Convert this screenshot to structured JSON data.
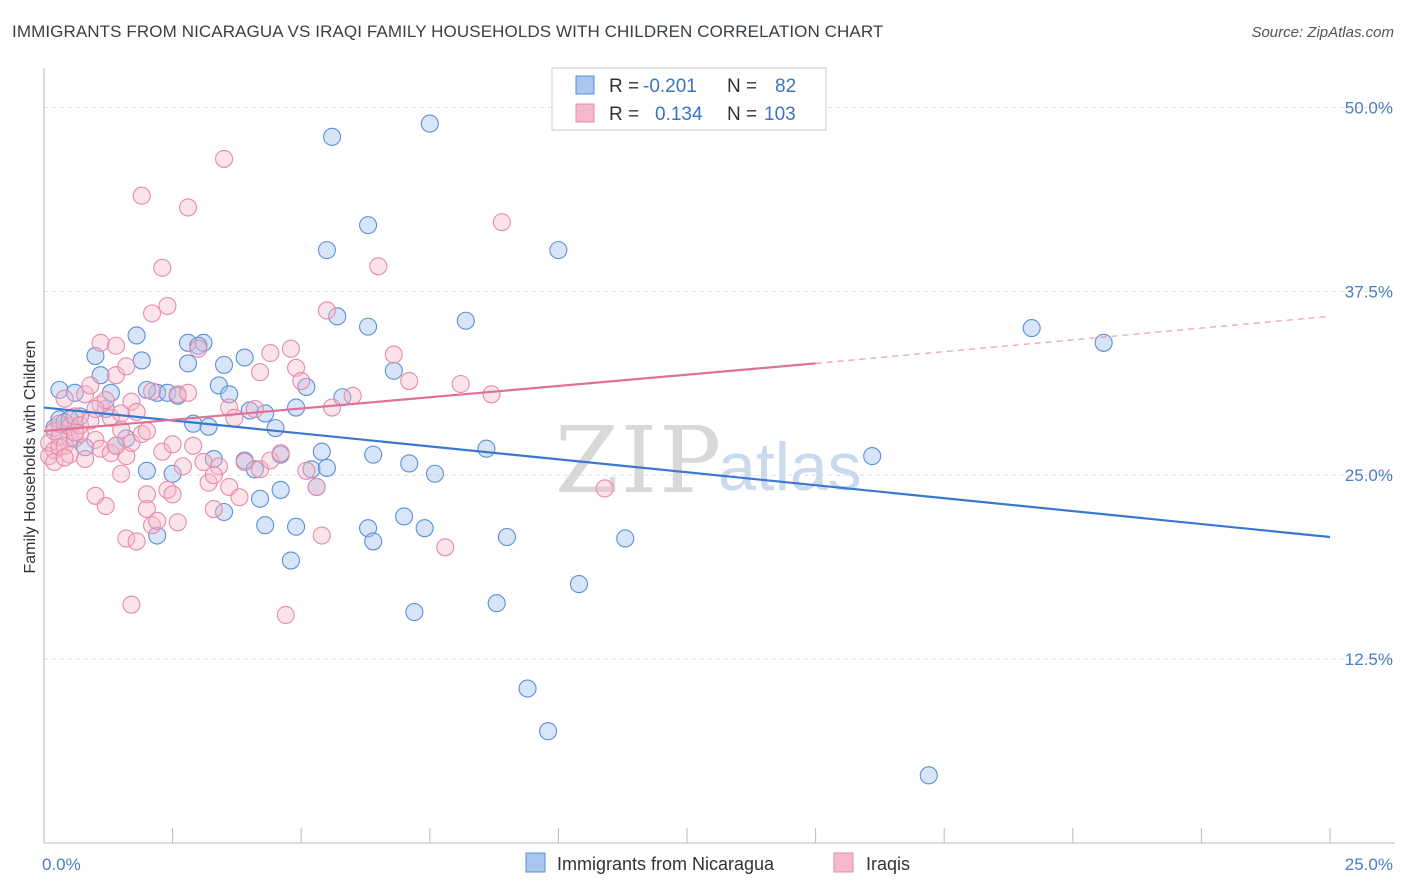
{
  "title": "IMMIGRANTS FROM NICARAGUA VS IRAQI FAMILY HOUSEHOLDS WITH CHILDREN CORRELATION CHART",
  "source": "Source: ZipAtlas.com",
  "watermark": {
    "zip": "ZIP",
    "atlas": "atlas"
  },
  "colors": {
    "blue_fill": "#a9c6ef",
    "blue_stroke": "#5b8fd6",
    "blue_line": "#3a78d0",
    "pink_fill": "#f6b8cb",
    "pink_stroke": "#e88aa8",
    "pink_line": "#e0709a",
    "grid": "#dddddd",
    "tick_text": "#4a7cc0"
  },
  "legend": {
    "rows": [
      {
        "r_label": "R =",
        "r_value": "-0.201",
        "n_label": "N =",
        "n_value": "82"
      },
      {
        "r_label": "R =",
        "r_value": "0.134",
        "n_label": "N =",
        "n_value": "103"
      }
    ]
  },
  "chart_data": {
    "type": "scatter",
    "title": "IMMIGRANTS FROM NICARAGUA VS IRAQI FAMILY HOUSEHOLDS WITH CHILDREN CORRELATION CHART",
    "xlabel": "",
    "ylabel": "Family Households with Children",
    "xlim": [
      0,
      25
    ],
    "ylim": [
      0,
      52
    ],
    "x_tick_labels": [
      "0.0%",
      "25.0%"
    ],
    "y_ticks": [
      12.5,
      25.0,
      37.5,
      50.0
    ],
    "y_tick_labels": [
      "12.5%",
      "25.0%",
      "37.5%",
      "50.0%"
    ],
    "grid": true,
    "legend_position": "top-center",
    "series": [
      {
        "name": "Immigrants from Nicaragua",
        "r": -0.201,
        "n": 82,
        "trend": {
          "x": [
            0,
            25
          ],
          "y": [
            29.6,
            20.8
          ]
        },
        "points": [
          [
            0.2,
            28.2
          ],
          [
            0.3,
            30.8
          ],
          [
            0.3,
            28.8
          ],
          [
            0.4,
            28.6
          ],
          [
            0.5,
            27.5
          ],
          [
            0.6,
            30.6
          ],
          [
            0.7,
            29.0
          ],
          [
            0.8,
            26.9
          ],
          [
            1.0,
            33.1
          ],
          [
            1.1,
            31.8
          ],
          [
            1.3,
            30.6
          ],
          [
            1.4,
            27.0
          ],
          [
            1.6,
            27.5
          ],
          [
            1.8,
            34.5
          ],
          [
            1.9,
            32.8
          ],
          [
            2.0,
            25.3
          ],
          [
            2.2,
            20.9
          ],
          [
            2.2,
            30.6
          ],
          [
            2.4,
            30.6
          ],
          [
            2.5,
            25.1
          ],
          [
            2.6,
            30.4
          ],
          [
            2.8,
            32.6
          ],
          [
            2.9,
            28.5
          ],
          [
            2.8,
            34.0
          ],
          [
            3.1,
            34.0
          ],
          [
            3.2,
            28.3
          ],
          [
            3.3,
            26.1
          ],
          [
            3.4,
            31.1
          ],
          [
            3.5,
            32.5
          ],
          [
            3.6,
            30.5
          ],
          [
            3.5,
            22.5
          ],
          [
            3.9,
            33.0
          ],
          [
            3.9,
            26.0
          ],
          [
            4.0,
            29.4
          ],
          [
            4.1,
            25.4
          ],
          [
            4.2,
            23.4
          ],
          [
            4.3,
            21.6
          ],
          [
            4.5,
            28.2
          ],
          [
            4.6,
            26.4
          ],
          [
            4.6,
            24.0
          ],
          [
            4.8,
            19.2
          ],
          [
            4.9,
            21.5
          ],
          [
            4.9,
            29.6
          ],
          [
            5.1,
            31.0
          ],
          [
            5.2,
            25.4
          ],
          [
            5.3,
            24.2
          ],
          [
            5.4,
            26.6
          ],
          [
            5.5,
            25.5
          ],
          [
            5.5,
            40.3
          ],
          [
            5.6,
            48.0
          ],
          [
            5.7,
            35.8
          ],
          [
            5.8,
            30.3
          ],
          [
            6.3,
            42.0
          ],
          [
            6.3,
            35.1
          ],
          [
            6.3,
            21.4
          ],
          [
            6.4,
            26.4
          ],
          [
            6.4,
            20.5
          ],
          [
            6.8,
            32.1
          ],
          [
            7.0,
            22.2
          ],
          [
            7.1,
            25.8
          ],
          [
            7.2,
            15.7
          ],
          [
            7.4,
            21.4
          ],
          [
            7.5,
            48.9
          ],
          [
            7.6,
            25.1
          ],
          [
            8.2,
            35.5
          ],
          [
            8.6,
            26.8
          ],
          [
            8.8,
            16.3
          ],
          [
            9.0,
            20.8
          ],
          [
            9.4,
            10.5
          ],
          [
            9.8,
            7.6
          ],
          [
            10.0,
            40.3
          ],
          [
            10.4,
            17.6
          ],
          [
            11.3,
            20.7
          ],
          [
            16.1,
            26.3
          ],
          [
            17.2,
            4.6
          ],
          [
            19.2,
            35.0
          ],
          [
            20.6,
            34.0
          ],
          [
            0.5,
            28.8
          ],
          [
            1.2,
            29.5
          ],
          [
            2.0,
            30.8
          ],
          [
            3.0,
            33.8
          ],
          [
            4.3,
            29.2
          ]
        ]
      },
      {
        "name": "Iraqis",
        "r": 0.134,
        "n": 103,
        "trend": {
          "x": [
            0,
            15
          ],
          "y": [
            28.0,
            32.6
          ]
        },
        "trend_dashed": {
          "x": [
            15,
            25
          ],
          "y": [
            32.6,
            35.8
          ]
        },
        "points": [
          [
            0.1,
            26.3
          ],
          [
            0.1,
            27.2
          ],
          [
            0.2,
            26.7
          ],
          [
            0.2,
            28.0
          ],
          [
            0.3,
            27.6
          ],
          [
            0.3,
            26.9
          ],
          [
            0.3,
            28.5
          ],
          [
            0.4,
            27.0
          ],
          [
            0.4,
            30.2
          ],
          [
            0.5,
            28.3
          ],
          [
            0.5,
            26.4
          ],
          [
            0.6,
            27.5
          ],
          [
            0.6,
            29.0
          ],
          [
            0.7,
            27.8
          ],
          [
            0.7,
            28.4
          ],
          [
            0.8,
            30.5
          ],
          [
            0.8,
            26.1
          ],
          [
            0.9,
            31.1
          ],
          [
            0.9,
            28.7
          ],
          [
            1.0,
            27.4
          ],
          [
            1.0,
            23.6
          ],
          [
            1.1,
            29.8
          ],
          [
            1.1,
            26.8
          ],
          [
            1.1,
            34.0
          ],
          [
            1.2,
            22.9
          ],
          [
            1.2,
            30.1
          ],
          [
            1.3,
            28.9
          ],
          [
            1.3,
            26.5
          ],
          [
            1.4,
            31.8
          ],
          [
            1.4,
            33.8
          ],
          [
            1.5,
            28.1
          ],
          [
            1.5,
            29.2
          ],
          [
            1.5,
            25.1
          ],
          [
            1.6,
            32.4
          ],
          [
            1.6,
            26.3
          ],
          [
            1.6,
            20.7
          ],
          [
            1.7,
            30.0
          ],
          [
            1.7,
            27.2
          ],
          [
            1.7,
            16.2
          ],
          [
            1.8,
            29.3
          ],
          [
            1.8,
            20.5
          ],
          [
            1.9,
            27.8
          ],
          [
            1.9,
            44.0
          ],
          [
            2.0,
            23.7
          ],
          [
            2.0,
            22.7
          ],
          [
            2.1,
            30.7
          ],
          [
            2.1,
            21.6
          ],
          [
            2.1,
            36.0
          ],
          [
            2.2,
            21.9
          ],
          [
            2.3,
            26.6
          ],
          [
            2.3,
            39.1
          ],
          [
            2.4,
            36.5
          ],
          [
            2.4,
            24.0
          ],
          [
            2.5,
            23.7
          ],
          [
            2.5,
            27.1
          ],
          [
            2.6,
            30.5
          ],
          [
            2.6,
            21.8
          ],
          [
            2.7,
            25.6
          ],
          [
            2.8,
            30.6
          ],
          [
            2.8,
            43.2
          ],
          [
            3.0,
            33.6
          ],
          [
            3.1,
            25.9
          ],
          [
            3.2,
            24.5
          ],
          [
            3.3,
            22.7
          ],
          [
            3.4,
            25.6
          ],
          [
            3.5,
            46.5
          ],
          [
            3.6,
            24.2
          ],
          [
            3.6,
            29.6
          ],
          [
            3.7,
            28.9
          ],
          [
            3.8,
            23.5
          ],
          [
            3.9,
            25.9
          ],
          [
            4.1,
            29.5
          ],
          [
            4.2,
            25.4
          ],
          [
            4.2,
            32.0
          ],
          [
            4.4,
            26.0
          ],
          [
            4.4,
            33.3
          ],
          [
            4.6,
            26.5
          ],
          [
            4.7,
            15.5
          ],
          [
            4.8,
            33.6
          ],
          [
            4.9,
            32.3
          ],
          [
            5.0,
            31.4
          ],
          [
            5.1,
            25.3
          ],
          [
            5.3,
            24.2
          ],
          [
            5.4,
            20.9
          ],
          [
            5.5,
            36.2
          ],
          [
            5.6,
            29.6
          ],
          [
            6.0,
            30.4
          ],
          [
            6.5,
            39.2
          ],
          [
            6.8,
            33.2
          ],
          [
            7.1,
            31.4
          ],
          [
            7.8,
            20.1
          ],
          [
            8.1,
            31.2
          ],
          [
            8.7,
            30.5
          ],
          [
            8.9,
            42.2
          ],
          [
            10.9,
            24.1
          ],
          [
            0.2,
            25.9
          ],
          [
            0.6,
            27.9
          ],
          [
            1.0,
            29.5
          ],
          [
            1.4,
            27.0
          ],
          [
            2.0,
            28.0
          ],
          [
            2.9,
            27.0
          ],
          [
            3.3,
            25.0
          ],
          [
            0.4,
            26.2
          ]
        ]
      }
    ]
  }
}
